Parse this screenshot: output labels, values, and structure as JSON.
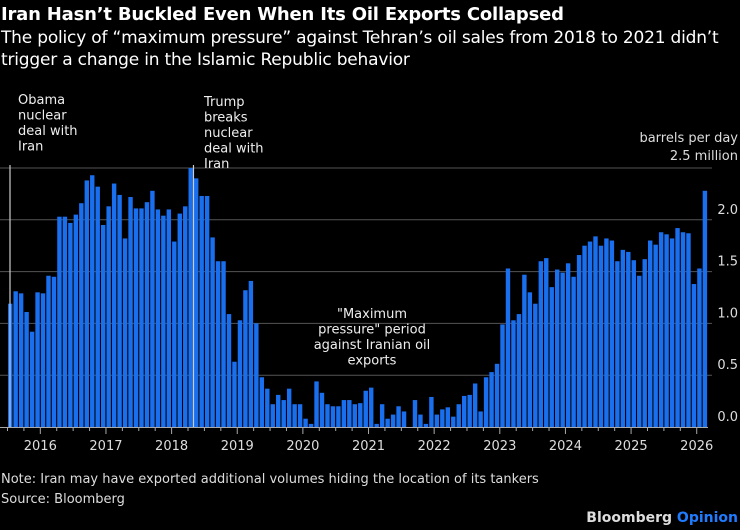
{
  "title": "Iran Hasn’t Buckled Even When Its Oil Exports Collapsed",
  "subtitle": "The policy of “maximum pressure” against Tehran’s oil sales from 2018 to 2021 didn’t trigger a change in the Islamic Republic behavior",
  "note": "Note: Iran may have exported additional volumes hiding the location of its tankers",
  "source": "Source: Bloomberg",
  "brand": {
    "name": "Bloomberg",
    "suffix": "Opinion"
  },
  "colors": {
    "bar": "#1a6fef",
    "brand_accent": "#1f7cff",
    "grid": "#555555"
  },
  "chart_data": {
    "type": "bar",
    "title": "Iran Hasn’t Buckled Even When Its Oil Exports Collapsed",
    "ylabel": "barrels per day",
    "y_unit_label": "2.5 million",
    "ylim": [
      0,
      2.5
    ],
    "yticks": [
      "0.0",
      "0.5",
      "1.0",
      "1.5",
      "2.0"
    ],
    "yticks_values": [
      0,
      0.5,
      1.0,
      1.5,
      2.0
    ],
    "grid": true,
    "frequency": "monthly",
    "start_month": "2015-07",
    "end_month": "2026-02",
    "xticks": [
      "2016",
      "2017",
      "2018",
      "2019",
      "2020",
      "2021",
      "2022",
      "2023",
      "2024",
      "2025",
      "2026"
    ],
    "values": [
      1.19,
      1.31,
      1.29,
      1.11,
      0.92,
      1.3,
      1.29,
      1.46,
      1.45,
      2.03,
      2.03,
      1.97,
      2.05,
      2.16,
      2.38,
      2.43,
      2.32,
      1.95,
      2.13,
      2.35,
      2.24,
      1.82,
      2.22,
      2.11,
      2.11,
      2.17,
      2.28,
      2.1,
      2.04,
      2.1,
      1.79,
      2.06,
      2.13,
      2.5,
      2.4,
      2.23,
      2.23,
      1.83,
      1.6,
      1.6,
      1.09,
      0.63,
      1.03,
      1.32,
      1.41,
      1.0,
      0.48,
      0.37,
      0.22,
      0.31,
      0.26,
      0.37,
      0.22,
      0.22,
      0.08,
      0.03,
      0.44,
      0.33,
      0.22,
      0.2,
      0.2,
      0.26,
      0.26,
      0.22,
      0.23,
      0.35,
      0.38,
      0.03,
      0.22,
      0.08,
      0.12,
      0.2,
      0.15,
      0.0,
      0.26,
      0.12,
      0.03,
      0.29,
      0.12,
      0.17,
      0.19,
      0.1,
      0.22,
      0.3,
      0.31,
      0.42,
      0.15,
      0.48,
      0.53,
      0.61,
      0.99,
      1.53,
      1.03,
      1.09,
      1.47,
      1.3,
      1.19,
      1.6,
      1.63,
      1.35,
      1.52,
      1.49,
      1.58,
      1.45,
      1.66,
      1.75,
      1.79,
      1.84,
      1.75,
      1.82,
      1.8,
      1.6,
      1.71,
      1.69,
      1.61,
      1.46,
      1.62,
      1.8,
      1.76,
      1.88,
      1.86,
      1.82,
      1.92,
      1.88,
      1.87,
      1.38,
      1.53,
      2.28
    ],
    "annotations": [
      {
        "text": [
          "Obama",
          "nuclear",
          "deal with",
          "Iran"
        ],
        "month_index": 0
      },
      {
        "text": [
          "Trump",
          "breaks",
          "nuclear",
          "deal with",
          "Iran"
        ],
        "month_index": 34
      },
      {
        "text": [
          "\"Maximum",
          "pressure\" period",
          "against Iranian oil",
          "exports"
        ],
        "month_index": 68
      }
    ]
  }
}
